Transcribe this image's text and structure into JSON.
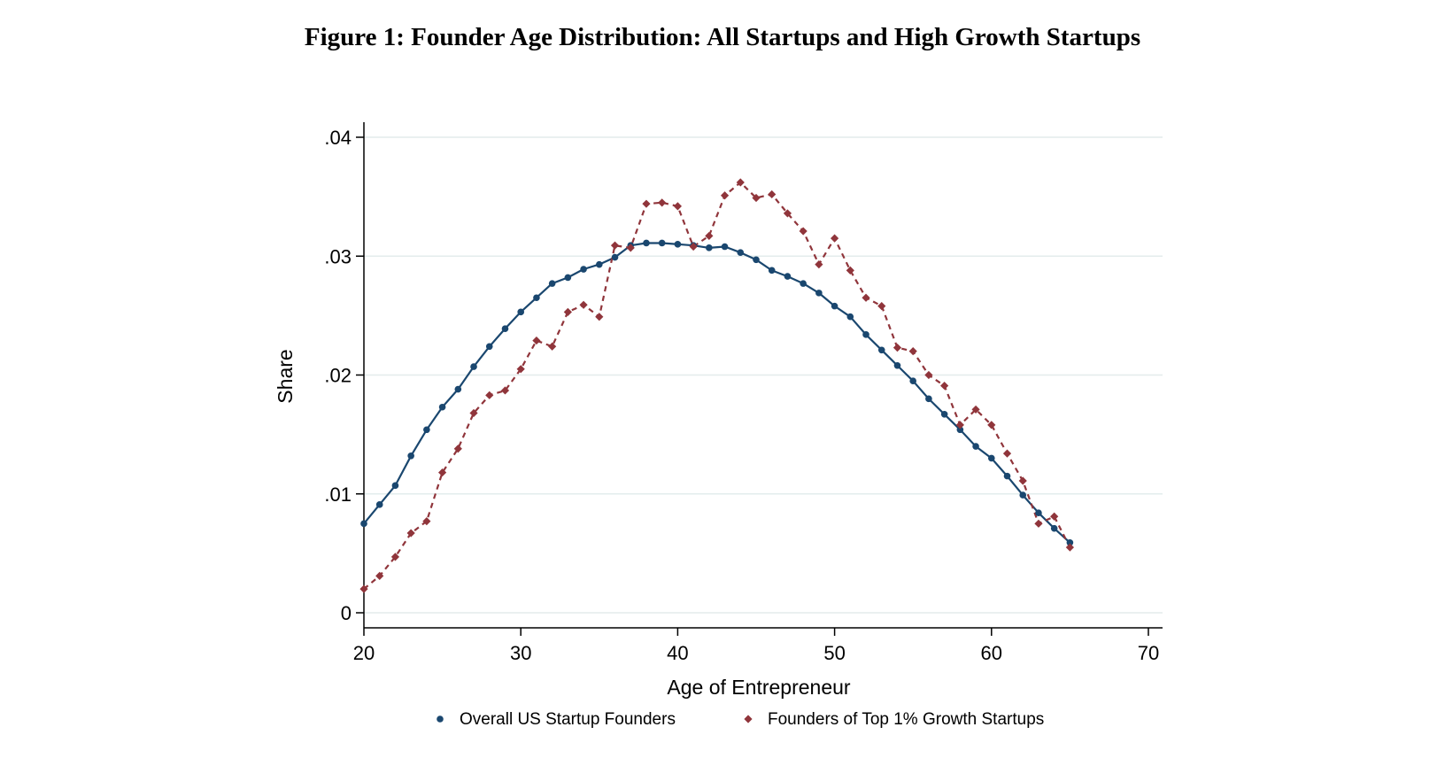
{
  "title": "Figure 1: Founder Age Distribution: All Startups and High Growth Startups",
  "chart_data": {
    "type": "line",
    "title": "Figure 1: Founder Age Distribution: All Startups and High Growth Startups",
    "xlabel": "Age of Entrepreneur",
    "ylabel": "Share",
    "xlim": [
      20,
      70
    ],
    "ylim": [
      0,
      0.04
    ],
    "xticks": [
      20,
      30,
      40,
      50,
      60,
      70
    ],
    "xtick_labels": [
      "20",
      "30",
      "40",
      "50",
      "60",
      "70"
    ],
    "yticks": [
      0,
      0.01,
      0.02,
      0.03,
      0.04
    ],
    "ytick_labels": [
      "0",
      ".01",
      ".02",
      ".03",
      ".04"
    ],
    "grid": "horizontal",
    "legend_position": "bottom",
    "x": [
      20,
      21,
      22,
      23,
      24,
      25,
      26,
      27,
      28,
      29,
      30,
      31,
      32,
      33,
      34,
      35,
      36,
      37,
      38,
      39,
      40,
      41,
      42,
      43,
      44,
      45,
      46,
      47,
      48,
      49,
      50,
      51,
      52,
      53,
      54,
      55,
      56,
      57,
      58,
      59,
      60,
      61,
      62,
      63,
      64,
      65
    ],
    "series": [
      {
        "name": "Overall US Startup Founders",
        "color": "#1a476f",
        "style": "solid",
        "marker": "circle",
        "values": [
          0.0075,
          0.0091,
          0.0107,
          0.0132,
          0.0154,
          0.0173,
          0.0188,
          0.0207,
          0.0224,
          0.0239,
          0.0253,
          0.0265,
          0.0277,
          0.0282,
          0.0289,
          0.0293,
          0.0299,
          0.0309,
          0.0311,
          0.0311,
          0.031,
          0.0309,
          0.0307,
          0.0308,
          0.0303,
          0.0297,
          0.0288,
          0.0283,
          0.0277,
          0.0269,
          0.0258,
          0.0249,
          0.0234,
          0.0221,
          0.0208,
          0.0195,
          0.018,
          0.0167,
          0.0154,
          0.014,
          0.013,
          0.0115,
          0.0099,
          0.0084,
          0.0071,
          0.0059
        ]
      },
      {
        "name": "Founders of Top 1% Growth Startups",
        "color": "#90353b",
        "style": "dashed",
        "marker": "diamond",
        "values": [
          0.002,
          0.0031,
          0.0047,
          0.0067,
          0.0077,
          0.0118,
          0.0138,
          0.0168,
          0.0183,
          0.0187,
          0.0205,
          0.0229,
          0.0224,
          0.0253,
          0.0259,
          0.0249,
          0.0309,
          0.0307,
          0.0344,
          0.0345,
          0.0342,
          0.0308,
          0.0317,
          0.0351,
          0.0362,
          0.0349,
          0.0352,
          0.0336,
          0.0321,
          0.0293,
          0.0315,
          0.0288,
          0.0265,
          0.0258,
          0.0223,
          0.022,
          0.02,
          0.0191,
          0.0158,
          0.0171,
          0.0158,
          0.0134,
          0.0111,
          0.0075,
          0.0081,
          0.0055
        ]
      }
    ]
  }
}
